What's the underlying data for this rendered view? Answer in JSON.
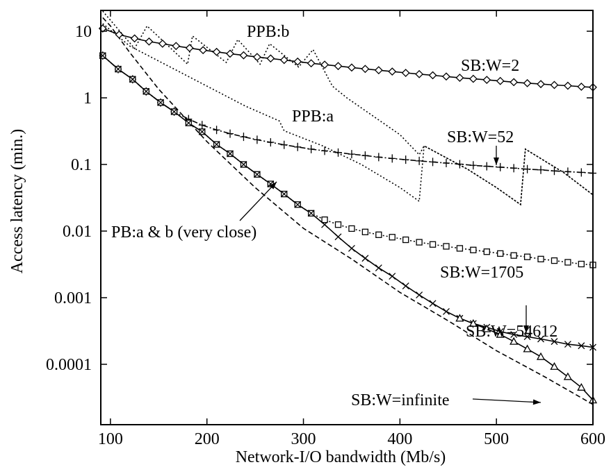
{
  "chart_data": {
    "type": "line",
    "title": "",
    "xlabel": "Network-I/O bandwidth (Mb/s)",
    "ylabel": "Access latency (min.)",
    "xlim": [
      90,
      600
    ],
    "ylim": [
      2e-05,
      20
    ],
    "yscale": "log",
    "grid": false,
    "legend": "none",
    "xticks": [
      100,
      200,
      300,
      400,
      500,
      600
    ],
    "xtick_labels": [
      "100",
      "200",
      "300",
      "400",
      "500",
      "600"
    ],
    "yticks": [
      0.0001,
      0.001,
      0.01,
      0.1,
      1,
      10
    ],
    "ytick_labels": [
      "0.0001",
      "0.001",
      "0.01",
      "0.1",
      "1",
      "10"
    ],
    "series": [
      {
        "label": "SB:W=2",
        "marker": "diamond",
        "dash": "solid",
        "x": [
          92,
          109,
          125,
          140,
          154,
          168,
          182,
          196,
          210,
          224,
          238,
          252,
          266,
          280,
          294,
          308,
          322,
          336,
          350,
          364,
          378,
          392,
          406,
          420,
          434,
          448,
          462,
          476,
          490,
          504,
          518,
          532,
          546,
          560,
          574,
          588,
          600
        ],
        "y": [
          11,
          8.9,
          7.8,
          7.0,
          6.5,
          6.0,
          5.6,
          5.2,
          4.9,
          4.6,
          4.35,
          4.1,
          3.9,
          3.7,
          3.5,
          3.3,
          3.15,
          3.0,
          2.85,
          2.72,
          2.6,
          2.48,
          2.37,
          2.27,
          2.18,
          2.09,
          2.0,
          1.93,
          1.86,
          1.79,
          1.72,
          1.66,
          1.61,
          1.56,
          1.52,
          1.47,
          1.44
        ]
      },
      {
        "label": "SB:W=52",
        "marker": "plus",
        "dash": "dashdot",
        "x": [
          92,
          108,
          123,
          137,
          152,
          166,
          181,
          195,
          210,
          224,
          238,
          252,
          266,
          280,
          294,
          308,
          322,
          336,
          350,
          364,
          378,
          392,
          406,
          420,
          434,
          448,
          462,
          476,
          490,
          504,
          518,
          532,
          546,
          560,
          574,
          588,
          600
        ],
        "y": [
          4.3,
          2.7,
          1.9,
          1.25,
          0.85,
          0.62,
          0.48,
          0.39,
          0.33,
          0.29,
          0.26,
          0.235,
          0.215,
          0.197,
          0.183,
          0.17,
          0.16,
          0.151,
          0.143,
          0.136,
          0.129,
          0.123,
          0.118,
          0.113,
          0.109,
          0.105,
          0.101,
          0.097,
          0.094,
          0.091,
          0.088,
          0.085,
          0.083,
          0.08,
          0.078,
          0.076,
          0.074
        ]
      },
      {
        "label": "SB:W=1705",
        "marker": "square",
        "dash": "dotted",
        "x": [
          92,
          108,
          123,
          137,
          152,
          166,
          181,
          195,
          210,
          224,
          238,
          252,
          266,
          280,
          294,
          308,
          322,
          336,
          350,
          364,
          378,
          392,
          406,
          420,
          434,
          448,
          462,
          476,
          490,
          504,
          518,
          532,
          546,
          560,
          574,
          588,
          600
        ],
        "y": [
          4.3,
          2.7,
          1.9,
          1.25,
          0.85,
          0.62,
          0.42,
          0.31,
          0.2,
          0.145,
          0.1,
          0.071,
          0.051,
          0.036,
          0.025,
          0.0185,
          0.0148,
          0.0125,
          0.0109,
          0.0097,
          0.0088,
          0.0081,
          0.0074,
          0.0068,
          0.0063,
          0.0059,
          0.0055,
          0.0052,
          0.0049,
          0.0046,
          0.0043,
          0.0041,
          0.0038,
          0.0036,
          0.0034,
          0.0032,
          0.0031
        ]
      },
      {
        "label": "SB:W=54612",
        "marker": "cross",
        "dash": "solid",
        "x": [
          92,
          108,
          123,
          137,
          152,
          166,
          181,
          195,
          210,
          224,
          238,
          252,
          266,
          280,
          294,
          308,
          322,
          336,
          350,
          364,
          378,
          392,
          406,
          420,
          434,
          448,
          462,
          476,
          490,
          504,
          518,
          532,
          546,
          560,
          574,
          588,
          600
        ],
        "y": [
          4.3,
          2.7,
          1.9,
          1.25,
          0.85,
          0.62,
          0.42,
          0.31,
          0.2,
          0.145,
          0.1,
          0.071,
          0.051,
          0.036,
          0.025,
          0.0185,
          0.0125,
          0.0082,
          0.0055,
          0.0039,
          0.0028,
          0.0021,
          0.0015,
          0.0011,
          0.00082,
          0.00062,
          0.00049,
          0.00041,
          0.00036,
          0.00031,
          0.00028,
          0.00026,
          0.00024,
          0.00022,
          0.0002,
          0.00019,
          0.00018
        ]
      },
      {
        "label": "SB:W=infinite",
        "marker": "triangle",
        "dash": "solid",
        "x": [
          462,
          476,
          490,
          504,
          518,
          532,
          546,
          560,
          574,
          588,
          600
        ],
        "y": [
          0.00049,
          0.00041,
          0.00034,
          0.00028,
          0.00022,
          0.00017,
          0.00013,
          9.25e-05,
          6.5e-05,
          4.5e-05,
          2.9e-05
        ]
      },
      {
        "label": "PB:a & b (very close)",
        "marker": "none",
        "dash": "dashed",
        "x": [
          92,
          100,
          120,
          150,
          200,
          250,
          300,
          350,
          400,
          450,
          500,
          550,
          600
        ],
        "y": [
          16,
          12,
          4.8,
          1.35,
          0.22,
          0.045,
          0.011,
          0.0038,
          0.0012,
          0.00045,
          0.00016,
          6.5e-05,
          2.5e-05
        ]
      },
      {
        "label": "PPB:a",
        "marker": "none",
        "dash": "dotted",
        "x": [
          92,
          120,
          160,
          200,
          240,
          275,
          280,
          320,
          360,
          400,
          420,
          425,
          470,
          500,
          525,
          530,
          570,
          600
        ],
        "y": [
          13,
          6.0,
          3.0,
          1.5,
          0.75,
          0.45,
          0.32,
          0.19,
          0.1,
          0.045,
          0.028,
          0.19,
          0.085,
          0.045,
          0.025,
          0.17,
          0.075,
          0.035
        ]
      },
      {
        "label": "PPB:b",
        "marker": "none",
        "dash": "dotted",
        "x": [
          92,
          125,
          138,
          180,
          185,
          220,
          232,
          255,
          265,
          295,
          310,
          330,
          345,
          400,
          420,
          425,
          470,
          500,
          525,
          530,
          570,
          600
        ],
        "y": [
          20,
          5.5,
          12,
          3.2,
          8.5,
          3.4,
          7.5,
          3.2,
          6.5,
          2.9,
          5.3,
          1.5,
          1.0,
          0.28,
          0.14,
          0.19,
          0.085,
          0.045,
          0.025,
          0.17,
          0.075,
          0.035
        ]
      }
    ],
    "annotations": [
      {
        "text": "PPB:b"
      },
      {
        "text": "SB:W=2"
      },
      {
        "text": "PPB:a"
      },
      {
        "text": "SB:W=52"
      },
      {
        "text": "PB:a & b (very close)"
      },
      {
        "text": "SB:W=1705"
      },
      {
        "text": "SB:W=54612"
      },
      {
        "text": "SB:W=infinite"
      }
    ]
  }
}
